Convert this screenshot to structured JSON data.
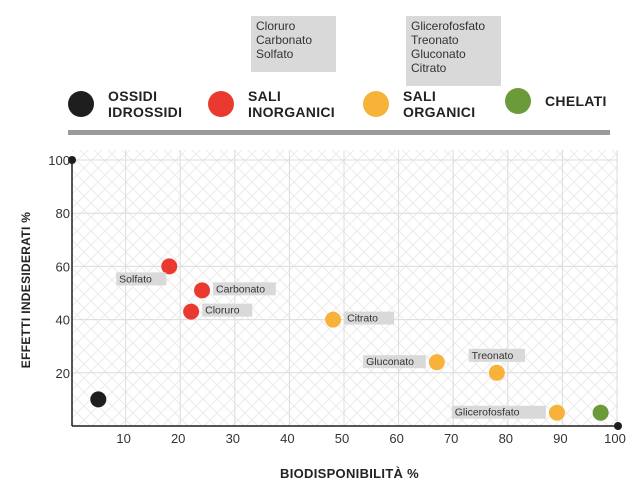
{
  "notes": {
    "sali_inorganici": "Cloruro\nCarbonato\nSolfato",
    "sali_organici": "Glicerofosfato\nTreonato\nGluconato\nCitrato"
  },
  "legend": [
    {
      "label": "OSSIDI\nIDROSSIDI",
      "color": "#1e1e1e"
    },
    {
      "label": "SALI\nINORGANICI",
      "color": "#ea3a2f"
    },
    {
      "label": "SALI\nORGANICI",
      "color": "#f8b23a"
    },
    {
      "label": "CHELATI",
      "color": "#6a9a3a"
    }
  ],
  "chart_data": {
    "type": "scatter",
    "xlabel": "BIODISPONIBILITÀ %",
    "ylabel": "EFFETTI INDESIDERATI %",
    "xlim": [
      0,
      100
    ],
    "ylim": [
      0,
      100
    ],
    "xticks": [
      "10",
      "20",
      "30",
      "40",
      "50",
      "60",
      "70",
      "80",
      "90",
      "100"
    ],
    "yticks": [
      "20",
      "40",
      "60",
      "80",
      "100"
    ],
    "grid": true,
    "legend_position": "top",
    "series": [
      {
        "name": "OSSIDI IDROSSIDI",
        "color": "#1e1e1e",
        "points": [
          {
            "x": 5,
            "y": 10,
            "label": ""
          }
        ]
      },
      {
        "name": "SALI INORGANICI",
        "color": "#ea3a2f",
        "points": [
          {
            "x": 18,
            "y": 60,
            "label": "Solfato",
            "label_side": "below-left"
          },
          {
            "x": 24,
            "y": 51,
            "label": "Carbonato",
            "label_side": "right"
          },
          {
            "x": 22,
            "y": 43,
            "label": "Cloruro",
            "label_side": "right"
          }
        ]
      },
      {
        "name": "SALI ORGANICI",
        "color": "#f8b23a",
        "points": [
          {
            "x": 48,
            "y": 40,
            "label": "Citrato",
            "label_side": "right"
          },
          {
            "x": 67,
            "y": 24,
            "label": "Gluconato",
            "label_side": "left"
          },
          {
            "x": 78,
            "y": 20,
            "label": "Treonato",
            "label_side": "above"
          },
          {
            "x": 89,
            "y": 5,
            "label": "Glicerofosfato",
            "label_side": "left"
          }
        ]
      },
      {
        "name": "CHELATI",
        "color": "#6a9a3a",
        "points": [
          {
            "x": 97,
            "y": 5,
            "label": ""
          }
        ]
      }
    ]
  }
}
